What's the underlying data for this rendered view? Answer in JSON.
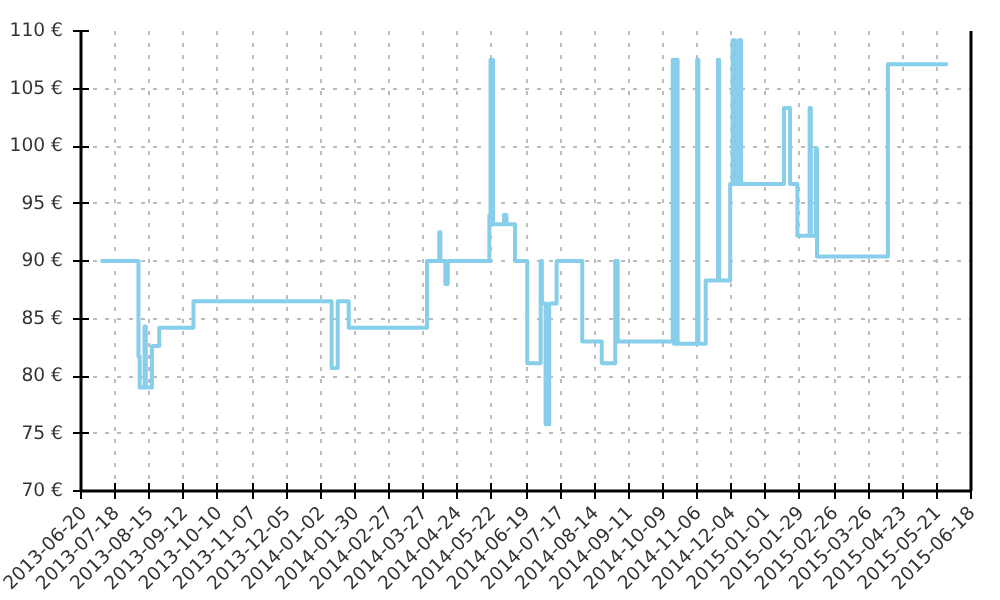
{
  "chart_data": {
    "type": "step",
    "x": [
      "2013-07-06",
      "2013-08-06",
      "2013-08-07",
      "2013-08-11",
      "2013-08-12",
      "2013-08-17",
      "2013-08-23",
      "2013-09-20",
      "2014-01-11",
      "2014-01-16",
      "2014-01-25",
      "2014-03-30",
      "2014-04-09",
      "2014-04-10",
      "2014-04-14",
      "2014-04-16",
      "2014-05-20",
      "2014-05-21",
      "2014-05-23",
      "2014-06-01",
      "2014-06-03",
      "2014-06-10",
      "2014-06-20",
      "2014-07-01",
      "2014-07-02",
      "2014-07-05",
      "2014-07-08",
      "2014-07-14",
      "2014-08-04",
      "2014-08-20",
      "2014-08-31",
      "2014-09-02",
      "2014-10-17",
      "2014-10-18",
      "2014-10-19",
      "2014-10-21",
      "2014-11-06",
      "2014-11-07",
      "2014-11-13",
      "2014-11-23",
      "2014-11-24",
      "2014-12-03",
      "2014-12-05",
      "2014-12-07",
      "2014-12-10",
      "2014-12-12",
      "2015-01-16",
      "2015-01-21",
      "2015-01-27",
      "2015-02-06",
      "2015-02-07",
      "2015-02-11",
      "2015-02-12",
      "2015-04-11",
      "2015-05-30"
    ],
    "series": [
      {
        "color": "#87ceeb",
        "values": [
          90,
          81.7,
          79,
          84.3,
          79,
          82.6,
          84.2,
          86.5,
          80.7,
          86.5,
          84.2,
          90,
          92.5,
          90,
          88,
          90,
          94,
          107.5,
          93.2,
          94,
          93.2,
          90,
          81.1,
          90,
          86.3,
          75.8,
          86.3,
          90,
          83,
          81.1,
          90,
          83,
          107.5,
          82.8,
          107.5,
          82.8,
          107.5,
          82.8,
          88.3,
          107.5,
          88.3,
          96.7,
          109.2,
          96.7,
          109.2,
          96.7,
          103.3,
          96.7,
          92.2,
          103.3,
          92.2,
          99.8,
          90.4,
          107.1,
          107.1
        ]
      }
    ],
    "xlim": [
      "2013-06-20",
      "2015-06-18"
    ],
    "xticks": [
      "2013-06-20",
      "2013-07-18",
      "2013-08-15",
      "2013-09-12",
      "2013-10-10",
      "2013-11-07",
      "2013-12-05",
      "2014-01-02",
      "2014-01-30",
      "2014-02-27",
      "2014-03-27",
      "2014-04-24",
      "2014-05-22",
      "2014-06-19",
      "2014-07-17",
      "2014-08-14",
      "2014-09-11",
      "2014-10-09",
      "2014-11-06",
      "2014-12-04",
      "2015-01-01",
      "2015-01-29",
      "2015-02-26",
      "2015-03-26",
      "2015-04-23",
      "2015-05-21",
      "2015-06-18"
    ],
    "ylim": [
      70,
      110
    ],
    "yticks": [
      {
        "value": 70,
        "label": "70 €"
      },
      {
        "value": 75,
        "label": "75 €"
      },
      {
        "value": 80,
        "label": "80 €"
      },
      {
        "value": 85,
        "label": "85 €"
      },
      {
        "value": 90,
        "label": "90 €"
      },
      {
        "value": 95,
        "label": "95 €"
      },
      {
        "value": 100,
        "label": "100 €"
      },
      {
        "value": 105,
        "label": "105 €"
      },
      {
        "value": 110,
        "label": "110 €"
      }
    ],
    "grid": true
  }
}
